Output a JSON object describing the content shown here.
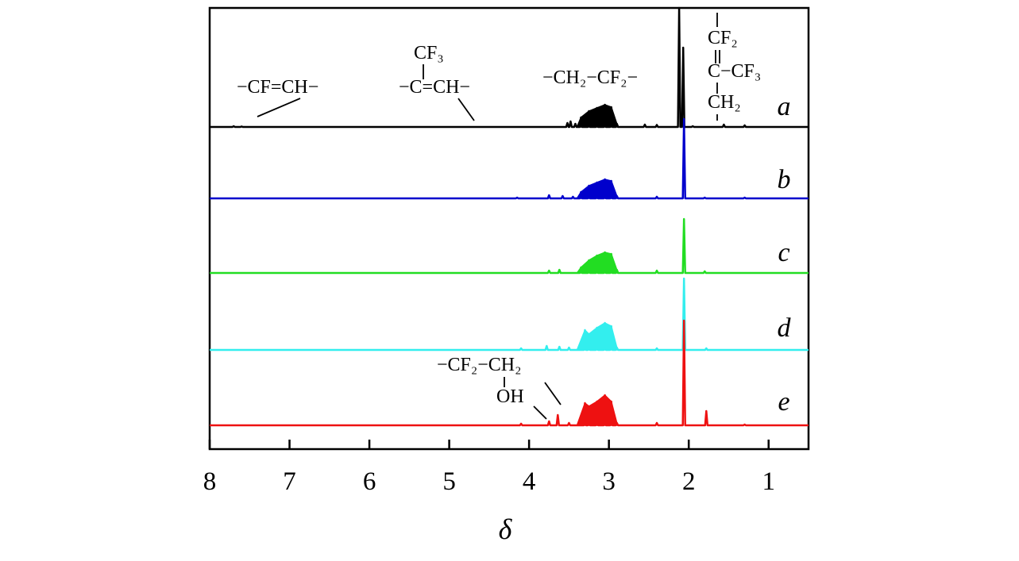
{
  "chart_data": {
    "type": "line",
    "xlabel": "δ",
    "ylabel": "",
    "xlim": [
      8,
      0.5
    ],
    "x_axis_reversed": true,
    "x_ticks": [
      8,
      7,
      6,
      5,
      4,
      3,
      2,
      1
    ],
    "x_tick_labels": [
      "8",
      "7",
      "6",
      "5",
      "4",
      "3",
      "2",
      "1"
    ],
    "grid": false,
    "legend": "none (series labeled on the right)",
    "series": [
      {
        "name": "a",
        "color": "#000000",
        "points": [
          [
            7.7,
            1
          ],
          [
            7.6,
            0.6
          ],
          [
            3.52,
            5
          ],
          [
            3.48,
            7
          ],
          [
            3.42,
            4
          ],
          [
            3.35,
            12
          ],
          [
            3.25,
            20
          ],
          [
            3.15,
            24
          ],
          [
            3.05,
            28
          ],
          [
            2.97,
            25
          ],
          [
            2.9,
            4
          ],
          [
            2.55,
            3
          ],
          [
            2.4,
            2.5
          ],
          [
            2.12,
            150
          ],
          [
            2.07,
            100
          ],
          [
            1.95,
            1
          ],
          [
            1.56,
            3
          ],
          [
            1.3,
            2
          ]
        ]
      },
      {
        "name": "b",
        "color": "#0000cc",
        "points": [
          [
            4.15,
            1
          ],
          [
            3.75,
            4
          ],
          [
            3.58,
            3
          ],
          [
            3.45,
            2
          ],
          [
            3.35,
            8
          ],
          [
            3.25,
            16
          ],
          [
            3.15,
            20
          ],
          [
            3.05,
            24
          ],
          [
            2.97,
            22
          ],
          [
            2.9,
            3
          ],
          [
            2.4,
            2
          ],
          [
            2.06,
            100
          ],
          [
            1.8,
            1
          ],
          [
            1.3,
            1
          ]
        ]
      },
      {
        "name": "c",
        "color": "#22dd22",
        "points": [
          [
            3.75,
            3
          ],
          [
            3.62,
            4
          ],
          [
            3.35,
            7
          ],
          [
            3.25,
            16
          ],
          [
            3.15,
            22
          ],
          [
            3.05,
            26
          ],
          [
            2.97,
            24
          ],
          [
            2.9,
            4
          ],
          [
            2.4,
            3
          ],
          [
            2.06,
            68
          ],
          [
            1.8,
            2
          ]
        ]
      },
      {
        "name": "d",
        "color": "#33eeee",
        "points": [
          [
            4.1,
            2
          ],
          [
            3.78,
            5
          ],
          [
            3.62,
            4
          ],
          [
            3.5,
            3
          ],
          [
            3.3,
            25
          ],
          [
            3.25,
            20
          ],
          [
            3.15,
            28
          ],
          [
            3.05,
            34
          ],
          [
            2.97,
            30
          ],
          [
            2.9,
            3
          ],
          [
            2.4,
            2
          ],
          [
            2.06,
            90
          ],
          [
            1.78,
            2
          ]
        ]
      },
      {
        "name": "e",
        "color": "#ee1111",
        "points": [
          [
            4.1,
            2
          ],
          [
            3.75,
            5
          ],
          [
            3.64,
            13
          ],
          [
            3.5,
            3
          ],
          [
            3.3,
            28
          ],
          [
            3.25,
            24
          ],
          [
            3.15,
            30
          ],
          [
            3.05,
            38
          ],
          [
            2.97,
            30
          ],
          [
            2.9,
            3
          ],
          [
            2.4,
            3
          ],
          [
            2.06,
            132
          ],
          [
            1.78,
            18
          ],
          [
            1.3,
            1
          ]
        ]
      }
    ],
    "annotations": [
      {
        "text": "−CF=CH−",
        "x": 7.4,
        "series": "a"
      },
      {
        "text": "CF3 | −C=CH−",
        "x": 4.7,
        "series": "a"
      },
      {
        "text": "−CH2−CF2−",
        "x": 3.0,
        "series": "a"
      },
      {
        "text": "CF2 ‖ C−CF3 | CH2",
        "x": 1.6,
        "series": "a"
      },
      {
        "text": "−CF2−CH2 | OH",
        "x": 3.75,
        "series": "e"
      }
    ]
  }
}
